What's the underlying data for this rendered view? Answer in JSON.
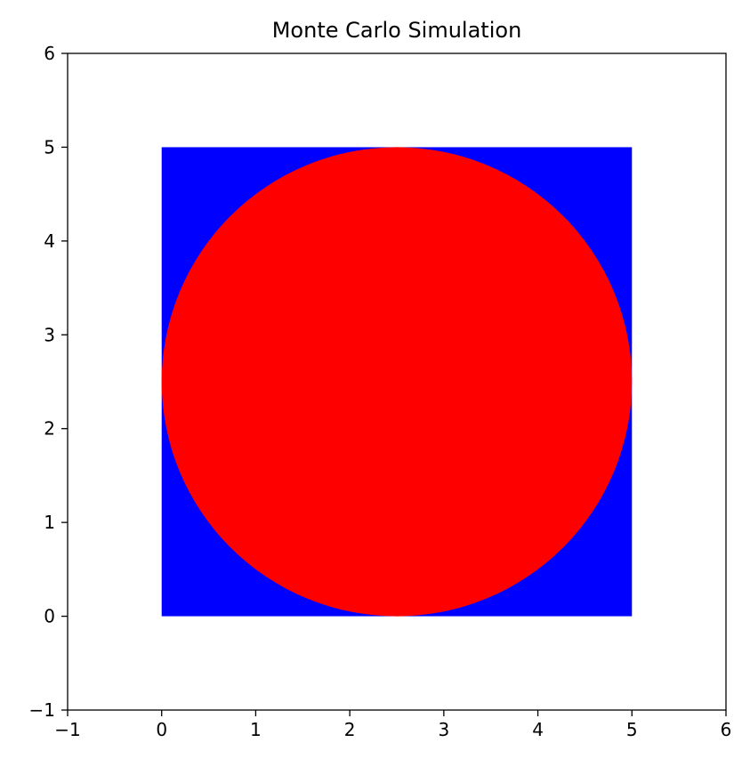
{
  "chart_data": {
    "type": "scatter",
    "title": "Monte Carlo Simulation",
    "xlabel": "",
    "ylabel": "",
    "xlim": [
      -1,
      6
    ],
    "ylim": [
      -1,
      6
    ],
    "xticks": [
      -1,
      0,
      1,
      2,
      3,
      4,
      5,
      6
    ],
    "yticks": [
      -1,
      0,
      1,
      2,
      3,
      4,
      5,
      6
    ],
    "xtick_labels": [
      "−1",
      "0",
      "1",
      "2",
      "3",
      "4",
      "5",
      "6"
    ],
    "ytick_labels": [
      "−1",
      "0",
      "1",
      "2",
      "3",
      "4",
      "5",
      "6"
    ],
    "grid": false,
    "legend": "none",
    "series": [
      {
        "region": "square",
        "color": "#0000ff",
        "x_range": [
          0,
          5
        ],
        "y_range": [
          0,
          5
        ]
      },
      {
        "region": "circle",
        "color": "#ff0000",
        "center": [
          2.5,
          2.5
        ],
        "radius": 2.5
      }
    ]
  }
}
